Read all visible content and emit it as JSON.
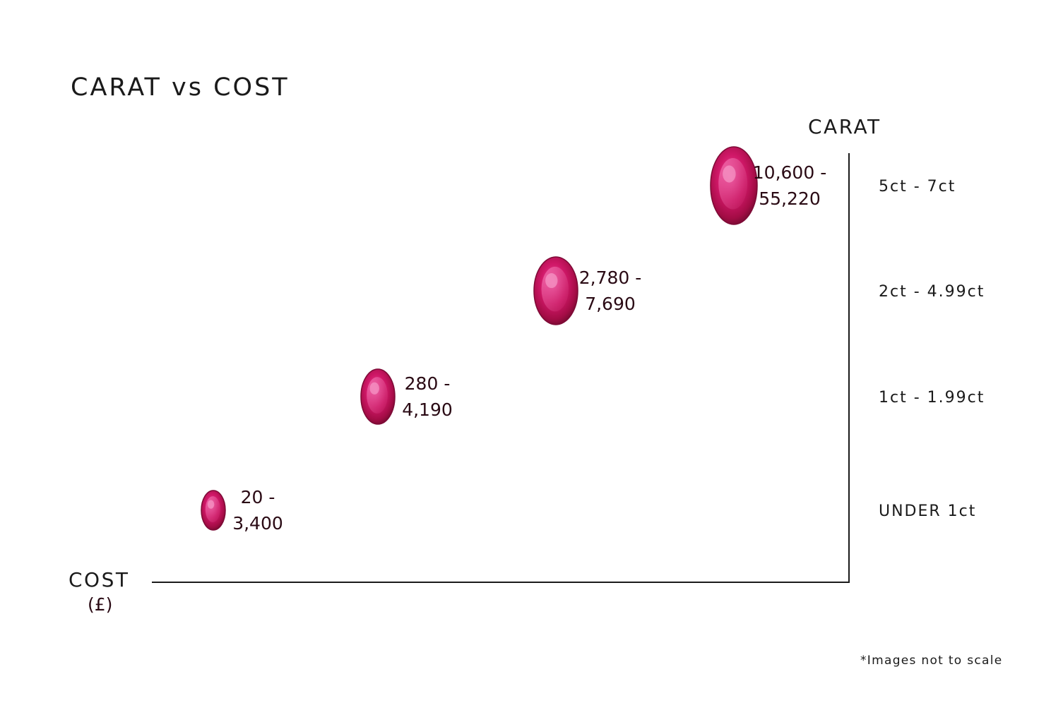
{
  "colors": {
    "gem": "#c0145a",
    "gem_dark": "#7d0a36",
    "gem_light": "#ea4a96",
    "axis": "#1a1a1a",
    "value_text": "#2a0a14"
  },
  "chart_data": {
    "type": "scatter",
    "title": "CARAT vs COST",
    "xlabel": "COST",
    "xlabel_unit": "(£)",
    "ylabel": "CARAT",
    "categories": [
      "UNDER 1ct",
      "1ct - 1.99ct",
      "2ct - 4.99ct",
      "5ct - 7ct"
    ],
    "points": [
      {
        "category": "UNDER 1ct",
        "cost_min": 20,
        "cost_max": 3400,
        "label_lines": [
          "20 -",
          "3,400"
        ]
      },
      {
        "category": "1ct - 1.99ct",
        "cost_min": 280,
        "cost_max": 4190,
        "label_lines": [
          "280 -",
          "4,190"
        ]
      },
      {
        "category": "2ct - 4.99ct",
        "cost_min": 2780,
        "cost_max": 7690,
        "label_lines": [
          "2,780 -",
          "7,690"
        ]
      },
      {
        "category": "5ct - 7ct",
        "cost_min": 10600,
        "cost_max": 55220,
        "label_lines": [
          "10,600 -",
          "55,220"
        ]
      }
    ],
    "marker": "oval ruby gemstone image",
    "grid": false,
    "legend": "none",
    "footnote": "*Images not to scale"
  }
}
